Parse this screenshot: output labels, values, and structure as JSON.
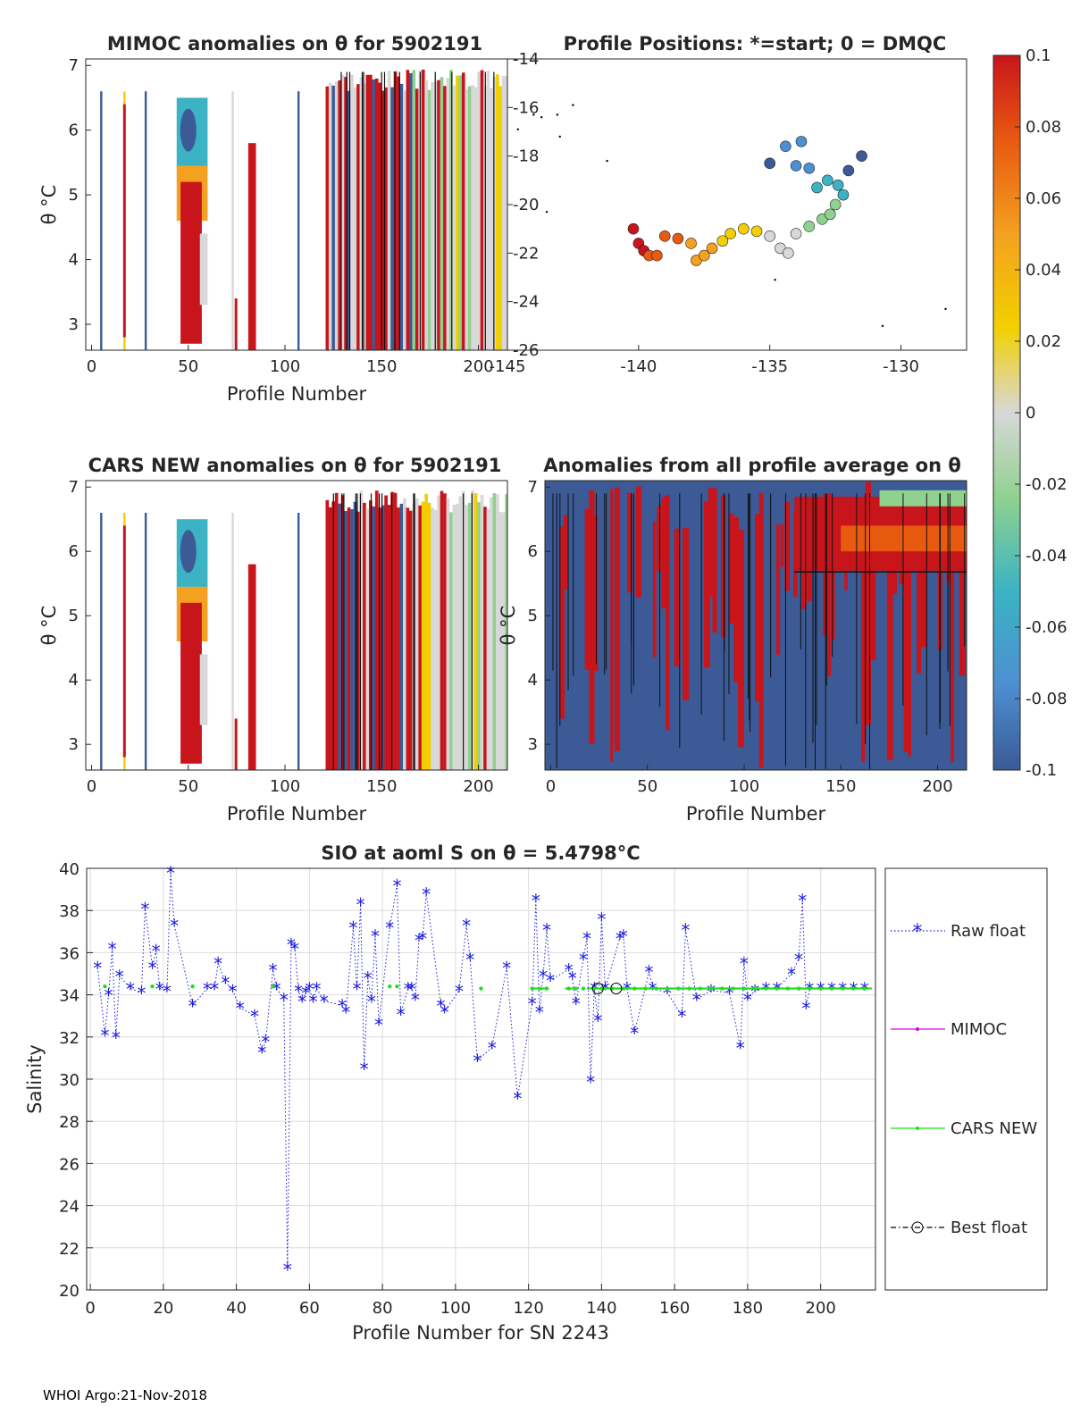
{
  "footer": "WHOI Argo:21-Nov-2018",
  "colorbar": {
    "ticks": [
      "0.1",
      "0.08",
      "0.06",
      "0.04",
      "0.02",
      "0",
      "-0.02",
      "-0.04",
      "-0.06",
      "-0.08",
      "-0.1"
    ],
    "range": [
      -0.1,
      0.1
    ],
    "colors": [
      "#3b5a96",
      "#4d8fd1",
      "#3bb3c4",
      "#8fd18f",
      "#d8d8d8",
      "#f2d000",
      "#f4a020",
      "#e85a10",
      "#c8151b"
    ]
  },
  "chart_data": [
    {
      "type": "heatmap",
      "title": "MIMOC anomalies on θ  for 5902191",
      "xlabel": "Profile Number",
      "ylabel": "θ °C",
      "xlim": [
        -3,
        215
      ],
      "ylim": [
        2.6,
        7.1
      ],
      "xticks": [
        "0",
        "50",
        "100",
        "150",
        "200"
      ],
      "yticks": [
        "3",
        "4",
        "5",
        "6",
        "7"
      ],
      "profiles": [
        5,
        17,
        28,
        45,
        50,
        55,
        73,
        82,
        107,
        122,
        130,
        140,
        150,
        160,
        170,
        180,
        190,
        200,
        210
      ]
    },
    {
      "type": "scatter",
      "title": "Profile Positions: *=start; 0 = DMQC",
      "xlim": [
        -145,
        -127.5
      ],
      "ylim": [
        -26,
        -14
      ],
      "xticks": [
        "-145",
        "-140",
        "-135",
        "-130"
      ],
      "yticks": [
        "-14",
        "-16",
        "-18",
        "-20",
        "-22",
        "-24",
        "-26"
      ],
      "points": [
        {
          "lon": -140.2,
          "lat": -21.0
        },
        {
          "lon": -140.0,
          "lat": -21.6
        },
        {
          "lon": -139.8,
          "lat": -21.9
        },
        {
          "lon": -139.6,
          "lat": -22.1
        },
        {
          "lon": -139.3,
          "lat": -22.1
        },
        {
          "lon": -139.0,
          "lat": -21.3
        },
        {
          "lon": -138.5,
          "lat": -21.4
        },
        {
          "lon": -138.0,
          "lat": -21.6
        },
        {
          "lon": -137.8,
          "lat": -22.3
        },
        {
          "lon": -137.5,
          "lat": -22.1
        },
        {
          "lon": -137.2,
          "lat": -21.8
        },
        {
          "lon": -136.8,
          "lat": -21.5
        },
        {
          "lon": -136.5,
          "lat": -21.2
        },
        {
          "lon": -136.0,
          "lat": -21.0
        },
        {
          "lon": -135.5,
          "lat": -21.1
        },
        {
          "lon": -135.0,
          "lat": -21.3
        },
        {
          "lon": -134.6,
          "lat": -21.8
        },
        {
          "lon": -134.3,
          "lat": -22.0
        },
        {
          "lon": -134.0,
          "lat": -21.2
        },
        {
          "lon": -133.5,
          "lat": -20.9
        },
        {
          "lon": -133.0,
          "lat": -20.6
        },
        {
          "lon": -132.7,
          "lat": -20.4
        },
        {
          "lon": -132.5,
          "lat": -20.0
        },
        {
          "lon": -132.2,
          "lat": -19.6
        },
        {
          "lon": -132.4,
          "lat": -19.2
        },
        {
          "lon": -132.8,
          "lat": -19.0
        },
        {
          "lon": -133.2,
          "lat": -19.3
        },
        {
          "lon": -133.5,
          "lat": -18.5
        },
        {
          "lon": -134.0,
          "lat": -18.4
        },
        {
          "lon": -134.4,
          "lat": -17.6
        },
        {
          "lon": -133.8,
          "lat": -17.4
        },
        {
          "lon": -135.0,
          "lat": -18.3
        },
        {
          "lon": -132.0,
          "lat": -18.6
        },
        {
          "lon": -131.5,
          "lat": -18.0
        }
      ]
    },
    {
      "type": "heatmap",
      "title": "CARS NEW anomalies on θ for 5902191",
      "xlabel": "Profile Number",
      "ylabel": "θ °C",
      "xlim": [
        -3,
        215
      ],
      "ylim": [
        2.6,
        7.1
      ],
      "xticks": [
        "0",
        "50",
        "100",
        "150",
        "200"
      ],
      "yticks": [
        "3",
        "4",
        "5",
        "6",
        "7"
      ]
    },
    {
      "type": "heatmap",
      "title": "Anomalies from all profile average on θ",
      "xlabel": "Profile Number",
      "ylabel": "θ °C",
      "xlim": [
        -3,
        215
      ],
      "ylim": [
        2.6,
        7.1
      ],
      "xticks": [
        "0",
        "50",
        "100",
        "150",
        "200"
      ],
      "yticks": [
        "3",
        "4",
        "5",
        "6",
        "7"
      ]
    },
    {
      "type": "line",
      "title": "SIO at aoml S on θ = 5.4798°C",
      "xlabel": "Profile Number for SN 2243",
      "ylabel": "Salinity",
      "xlim": [
        -1,
        215
      ],
      "ylim": [
        20,
        40
      ],
      "xticks": [
        "0",
        "20",
        "40",
        "60",
        "80",
        "100",
        "120",
        "140",
        "160",
        "180",
        "200"
      ],
      "yticks": [
        "20",
        "22",
        "24",
        "26",
        "28",
        "30",
        "32",
        "34",
        "36",
        "38",
        "40"
      ],
      "legend": [
        "Raw float",
        "MIMOC",
        "CARS NEW",
        "Best float"
      ],
      "series": [
        {
          "name": "Raw float",
          "x": [
            2,
            4,
            5,
            6,
            7,
            8,
            11,
            14,
            15,
            17,
            18,
            19,
            21,
            22,
            23,
            28,
            32,
            34,
            35,
            37,
            39,
            41,
            45,
            47,
            48,
            50,
            51,
            53,
            54,
            55,
            56,
            57,
            58,
            59,
            60,
            61,
            62,
            64,
            69,
            70,
            72,
            73,
            74,
            75,
            76,
            77,
            78,
            79,
            82,
            84,
            85,
            87,
            88,
            89,
            90,
            91,
            92,
            96,
            97,
            101,
            103,
            104,
            106,
            110,
            114,
            117,
            121,
            122,
            123,
            124,
            125,
            126,
            131,
            132,
            133,
            135,
            136,
            137,
            138,
            139,
            140,
            141,
            145,
            146,
            147,
            149,
            153,
            154,
            158,
            162,
            163,
            166,
            170,
            175,
            178,
            179,
            180,
            182,
            185,
            188,
            192,
            194,
            195,
            196,
            197,
            200,
            203,
            206,
            209,
            212
          ],
          "y": [
            35.3,
            32.1,
            34.0,
            36.2,
            32.0,
            34.9,
            34.3,
            34.1,
            38.1,
            35.3,
            36.1,
            34.3,
            34.2,
            39.8,
            37.3,
            33.5,
            34.3,
            34.3,
            35.5,
            34.6,
            34.2,
            33.4,
            33.0,
            31.3,
            31.8,
            35.2,
            34.3,
            33.8,
            21.0,
            36.4,
            36.2,
            34.2,
            33.7,
            34.1,
            34.3,
            33.7,
            34.3,
            33.7,
            33.5,
            33.2,
            37.2,
            34.3,
            38.3,
            30.5,
            34.8,
            33.7,
            36.8,
            32.6,
            37.2,
            39.2,
            33.1,
            34.3,
            34.3,
            33.8,
            36.6,
            36.7,
            38.8,
            33.5,
            33.2,
            34.2,
            37.3,
            35.7,
            30.9,
            31.5,
            35.3,
            29.1,
            33.6,
            38.5,
            33.2,
            34.9,
            37.1,
            34.7,
            35.2,
            34.8,
            33.6,
            35.7,
            36.7,
            29.9,
            34.3,
            32.8,
            37.6,
            34.3,
            36.7,
            36.8,
            34.3,
            32.2,
            35.1,
            34.3,
            34.1,
            33.0,
            37.1,
            33.8,
            34.2,
            34.1,
            31.5,
            35.5,
            33.8,
            34.2,
            34.3,
            34.3,
            35.0,
            35.7,
            38.5,
            33.4,
            34.3,
            34.3,
            34.3,
            34.3,
            34.3,
            34.3
          ]
        },
        {
          "name": "CARS NEW",
          "x": [
            4,
            17,
            28,
            50,
            82,
            84,
            107,
            121,
            123,
            125,
            131,
            133,
            135,
            138,
            140,
            143,
            146,
            149,
            152,
            155,
            158,
            161,
            164,
            167,
            170,
            173,
            176,
            179,
            182,
            185,
            188,
            191,
            194,
            197,
            200,
            203,
            206,
            209,
            212
          ],
          "y": [
            34.4,
            34.4,
            34.4,
            34.4,
            34.4,
            34.4,
            34.3,
            34.3,
            34.3,
            34.3,
            34.3,
            34.3,
            34.3,
            34.3,
            34.3,
            34.3,
            34.3,
            34.3,
            34.3,
            34.3,
            34.3,
            34.3,
            34.3,
            34.3,
            34.3,
            34.3,
            34.3,
            34.3,
            34.3,
            34.3,
            34.3,
            34.3,
            34.3,
            34.3,
            34.3,
            34.3,
            34.3,
            34.3,
            34.3
          ]
        },
        {
          "name": "Best float",
          "x": [
            139,
            144
          ],
          "y": [
            34.3,
            34.3
          ]
        }
      ]
    }
  ]
}
